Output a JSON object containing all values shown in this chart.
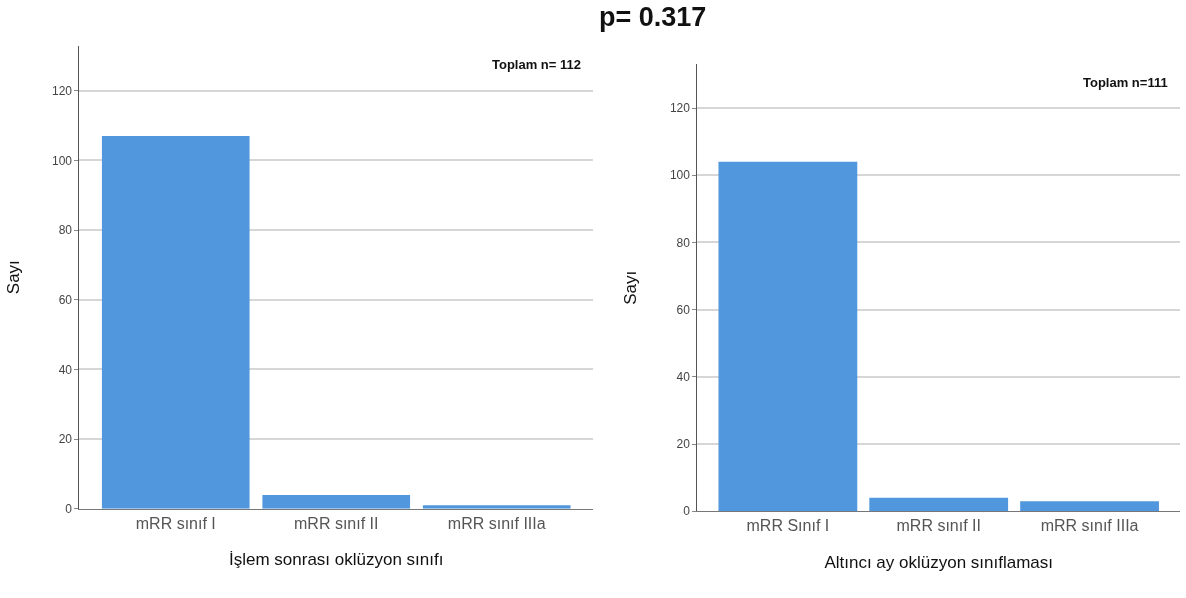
{
  "chart_data": [
    {
      "type": "bar",
      "title": "p= 0.317",
      "xlabel": "İşlem sonrası oklüzyon sınıfı",
      "ylabel": "Sayı",
      "categories": [
        "mRR sınıf I",
        "mRR sınıf II",
        "mRR sınıf IIIa"
      ],
      "values": [
        107,
        4,
        1
      ],
      "color": "#5197dd",
      "ylim": [
        0,
        133
      ],
      "yticks": [
        0,
        20,
        40,
        60,
        80,
        100,
        120
      ],
      "grid": "y",
      "annotations": [
        "Toplam n= 112"
      ]
    },
    {
      "type": "bar",
      "xlabel": "Altıncı ay oklüzyon sınıflaması",
      "ylabel": "Sayı",
      "categories": [
        "mRR Sınıf I",
        "mRR sınıf II",
        "mRR sınıf IIIa"
      ],
      "values": [
        104,
        4,
        3
      ],
      "color": "#5197dd",
      "ylim": [
        0,
        133
      ],
      "yticks": [
        0,
        20,
        40,
        60,
        80,
        100,
        120
      ],
      "grid": "y",
      "annotations": [
        "Toplam n=111"
      ]
    }
  ]
}
